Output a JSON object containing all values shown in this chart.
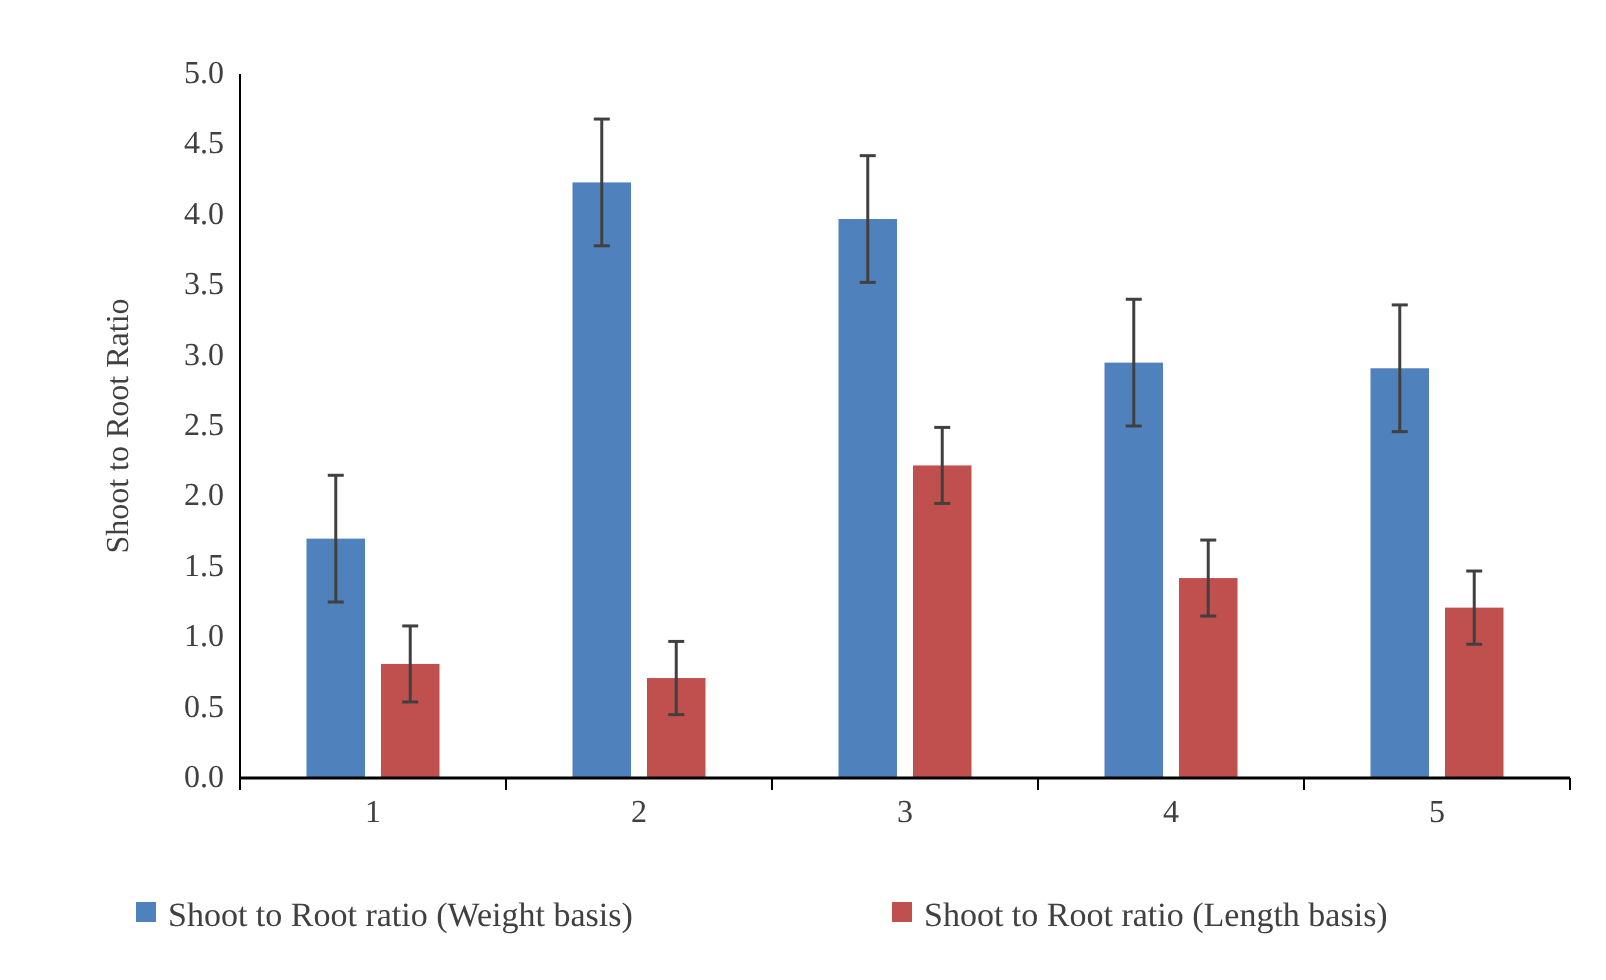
{
  "chart_data": {
    "type": "bar",
    "ylabel": "Shoot  to Root Ratio",
    "categories": [
      "1",
      "2",
      "3",
      "4",
      "5"
    ],
    "series": [
      {
        "name": "Shoot to Root ratio (Weight basis)",
        "color": "#4f81bd",
        "values": [
          1.7,
          4.23,
          3.97,
          2.95,
          2.91
        ],
        "errors": [
          0.45,
          0.45,
          0.45,
          0.45,
          0.45
        ]
      },
      {
        "name": "Shoot to Root ratio (Length basis)",
        "color": "#c0504d",
        "values": [
          0.81,
          0.71,
          2.22,
          1.42,
          1.21
        ],
        "errors": [
          0.27,
          0.26,
          0.27,
          0.27,
          0.26
        ]
      }
    ],
    "ylim": [
      0,
      5
    ],
    "yticks": [
      {
        "value": 0,
        "label": "0.0"
      },
      {
        "value": 0.5,
        "label": "0.5"
      },
      {
        "value": 1,
        "label": "1.0"
      },
      {
        "value": 1.5,
        "label": "1.5"
      },
      {
        "value": 2,
        "label": "2.0"
      },
      {
        "value": 2.5,
        "label": "2.5"
      },
      {
        "value": 3,
        "label": "3.0"
      },
      {
        "value": 3.5,
        "label": "3.5"
      },
      {
        "value": 4,
        "label": "4.0"
      },
      {
        "value": 4.5,
        "label": "4.5"
      },
      {
        "value": 5,
        "label": "5.0"
      }
    ],
    "grid": false,
    "legend": "bottom"
  }
}
